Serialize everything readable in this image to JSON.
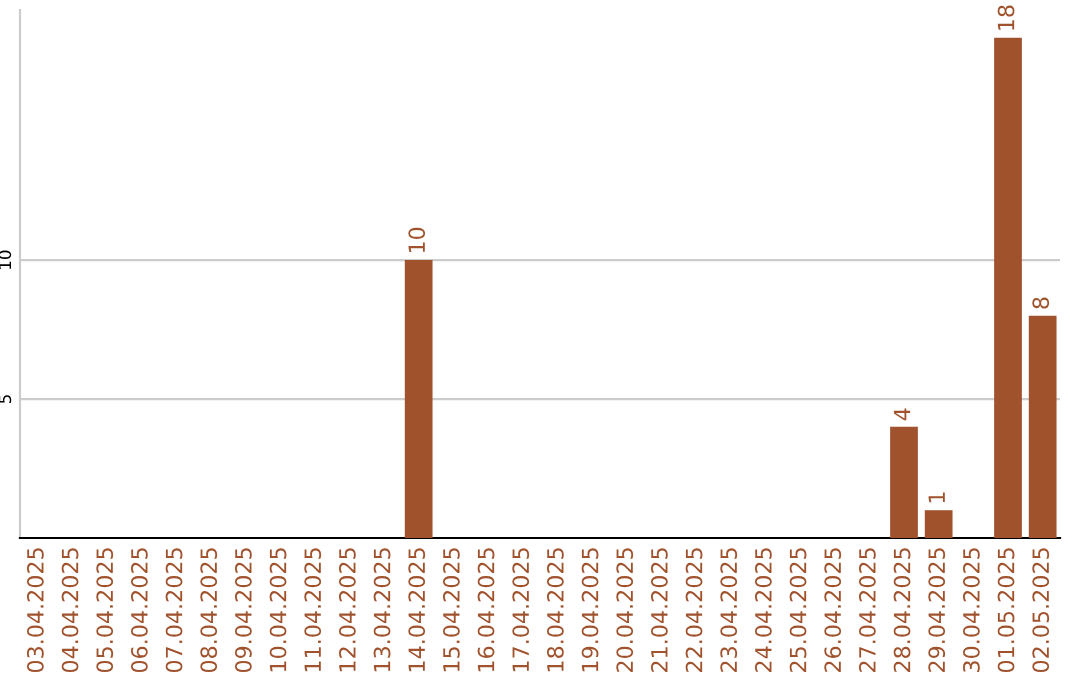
{
  "chart_data": {
    "type": "bar",
    "categories": [
      "03.04.2025",
      "04.04.2025",
      "05.04.2025",
      "06.04.2025",
      "07.04.2025",
      "08.04.2025",
      "09.04.2025",
      "10.04.2025",
      "11.04.2025",
      "12.04.2025",
      "13.04.2025",
      "14.04.2025",
      "15.04.2025",
      "16.04.2025",
      "17.04.2025",
      "18.04.2025",
      "19.04.2025",
      "20.04.2025",
      "21.04.2025",
      "22.04.2025",
      "23.04.2025",
      "24.04.2025",
      "25.04.2025",
      "26.04.2025",
      "27.04.2025",
      "28.04.2025",
      "29.04.2025",
      "30.04.2025",
      "01.05.2025",
      "02.05.2025"
    ],
    "values": [
      0,
      0,
      0,
      0,
      0,
      0,
      0,
      0,
      0,
      0,
      0,
      10,
      0,
      0,
      0,
      0,
      0,
      0,
      0,
      0,
      0,
      0,
      0,
      0,
      0,
      4,
      1,
      0,
      18,
      8
    ],
    "value_labels": [
      null,
      null,
      null,
      null,
      null,
      null,
      null,
      null,
      null,
      null,
      null,
      "10",
      null,
      null,
      null,
      null,
      null,
      null,
      null,
      null,
      null,
      null,
      null,
      null,
      null,
      "4",
      "1",
      null,
      "18",
      "8"
    ],
    "color": "#a0522d",
    "ylim": [
      0,
      19
    ],
    "yticks": [
      5,
      10
    ],
    "grid": "y"
  }
}
